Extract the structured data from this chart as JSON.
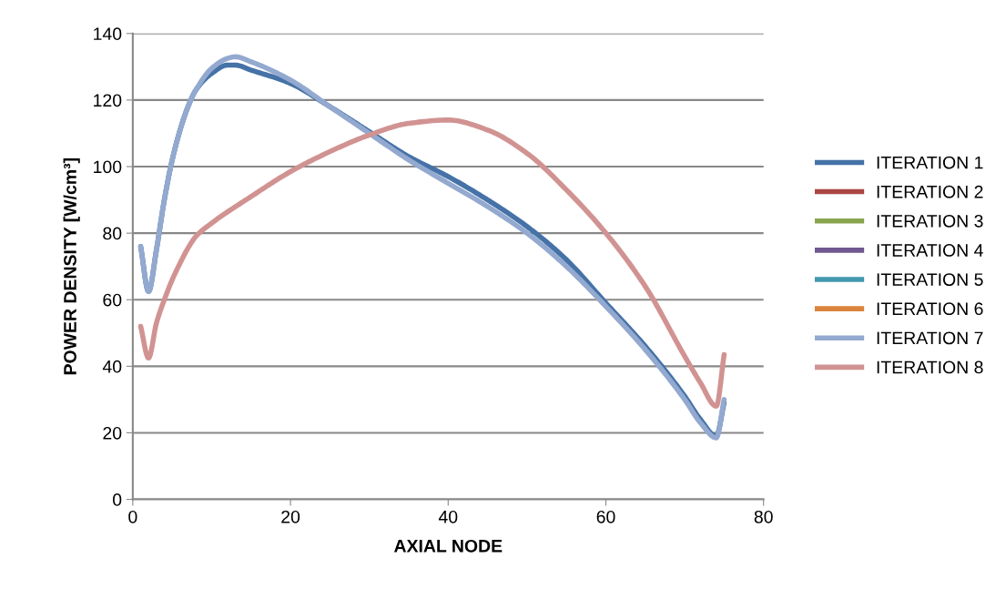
{
  "chart_data": {
    "type": "line",
    "xlabel": "AXIAL NODE",
    "ylabel": "POWER DENSITY [W/cm³]",
    "xlim": [
      0,
      80
    ],
    "xticks": [
      0,
      20,
      40,
      60,
      80
    ],
    "ylim": [
      0,
      140
    ],
    "yticks": [
      0,
      20,
      40,
      60,
      80,
      100,
      120,
      140
    ],
    "grid": "y",
    "legend": "right",
    "marker": "none",
    "line_style": "solid",
    "series": [
      {
        "name": "ITERATION 1",
        "color": "#4572a7",
        "x": [
          1,
          2,
          3,
          4,
          5,
          6,
          7,
          8,
          10,
          12,
          13,
          15,
          20,
          25,
          30,
          35,
          40,
          45,
          50,
          55,
          60,
          65,
          70,
          72,
          74,
          75
        ],
        "values": [
          76,
          62.5,
          75,
          90,
          102,
          111,
          118,
          123,
          128,
          130.5,
          130.5,
          129,
          125,
          118,
          110.5,
          103,
          97,
          90,
          82,
          72,
          59,
          46,
          31,
          24,
          19,
          29
        ]
      },
      {
        "name": "ITERATION 2",
        "color": "#aa4643",
        "values": [
          null
        ]
      },
      {
        "name": "ITERATION 3",
        "color": "#89a54e",
        "values": [
          null
        ]
      },
      {
        "name": "ITERATION 4",
        "color": "#71588f",
        "values": [
          null
        ]
      },
      {
        "name": "ITERATION 5",
        "color": "#4198af",
        "values": [
          null
        ]
      },
      {
        "name": "ITERATION 6",
        "color": "#db843d",
        "values": [
          null
        ]
      },
      {
        "name": "ITERATION 7",
        "color": "#93a9cf",
        "x": [
          1,
          2,
          3,
          4,
          5,
          6,
          7,
          8,
          10,
          12,
          13,
          15,
          20,
          25,
          30,
          35,
          40,
          45,
          50,
          55,
          60,
          65,
          70,
          72,
          74,
          75
        ],
        "values": [
          76,
          62.5,
          75,
          90,
          102,
          111,
          118,
          123,
          129.5,
          132.5,
          133,
          131.5,
          126,
          118,
          110,
          102,
          95,
          88,
          80,
          70,
          58,
          45,
          30,
          23,
          18.5,
          30
        ]
      },
      {
        "name": "ITERATION 8",
        "color": "#d19392",
        "x": [
          1,
          2,
          3,
          4,
          5,
          6,
          7,
          8,
          10,
          15,
          20,
          25,
          30,
          35,
          40,
          45,
          50,
          55,
          60,
          65,
          70,
          72,
          74,
          75
        ],
        "values": [
          52,
          42.5,
          53,
          60,
          66,
          71,
          75.5,
          79,
          83,
          91,
          98.5,
          104.5,
          109.5,
          113,
          114,
          111,
          104,
          93,
          80,
          64,
          43,
          35,
          28,
          43.5
        ]
      }
    ]
  }
}
